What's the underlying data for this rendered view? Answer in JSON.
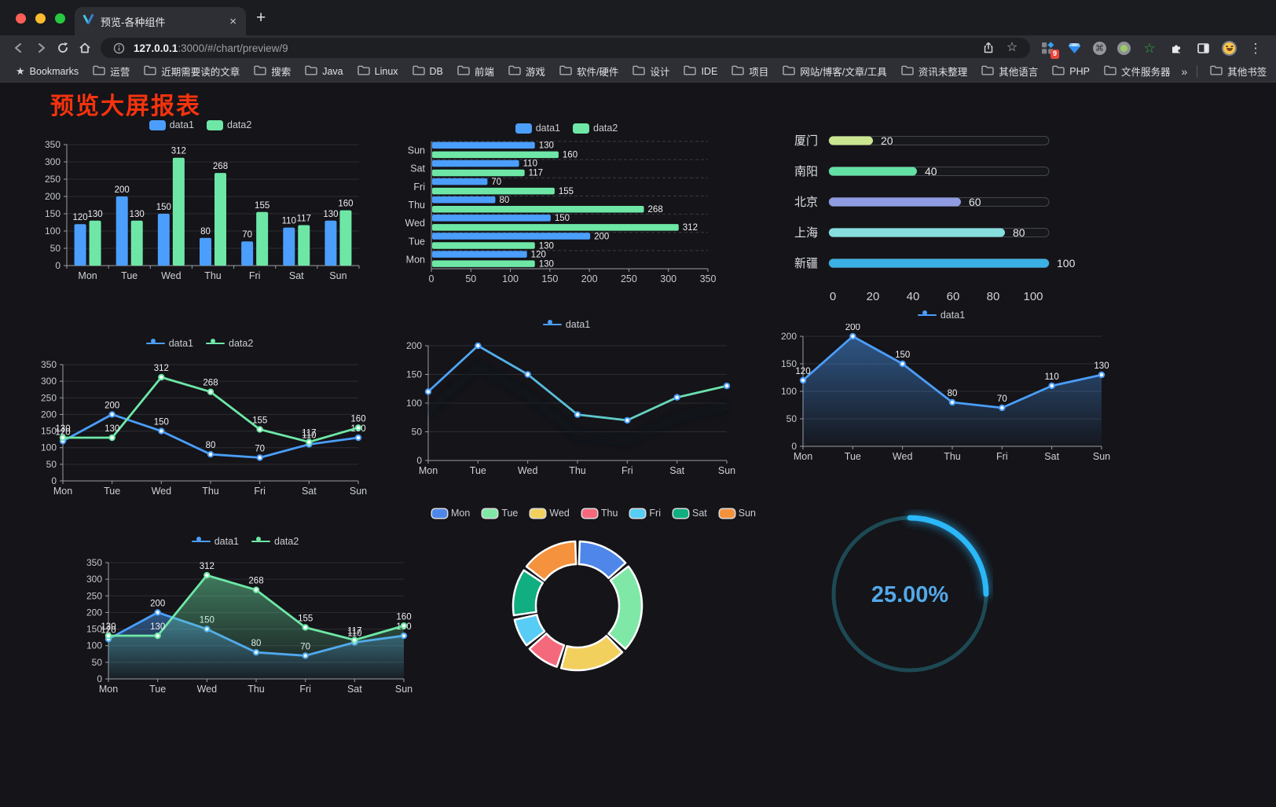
{
  "browser": {
    "tab": {
      "title": "预览-各种组件"
    },
    "glyphs": {
      "tab_close": "×",
      "new_tab": "+",
      "bookmarks_star": "★",
      "address_star": "☆",
      "green_star": "☆",
      "command": "⌘",
      "menu_dots": "⋮",
      "overflow": "»"
    },
    "url": {
      "host": "127.0.0.1",
      "rest": ":3000/#/chart/preview/9"
    },
    "extension_badge": "9",
    "bookmarks_bar": {
      "bookmarks_label": "Bookmarks",
      "folders": [
        "运营",
        "近期需要读的文章",
        "搜索",
        "Java",
        "Linux",
        "DB",
        "前端",
        "游戏",
        "软件/硬件",
        "设计",
        "IDE",
        "项目",
        "网站/博客/文章/工具",
        "资讯未整理",
        "其他语言",
        "PHP",
        "文件服务器"
      ],
      "other_bookmarks_label": "其他书签"
    }
  },
  "page": {
    "title": "预览大屏报表",
    "title_color": "#f6330e",
    "background": "#141419"
  },
  "chart_data": [
    {
      "id": "grouped-bar-vertical",
      "type": "bar",
      "title": "",
      "categories": [
        "Mon",
        "Tue",
        "Wed",
        "Thu",
        "Fri",
        "Sat",
        "Sun"
      ],
      "series": [
        {
          "name": "data1",
          "color": "#4b9efb",
          "values": [
            120,
            200,
            150,
            80,
            70,
            110,
            130
          ]
        },
        {
          "name": "data2",
          "color": "#6ee7a6",
          "values": [
            130,
            130,
            312,
            268,
            155,
            117,
            160
          ]
        }
      ],
      "ylim": [
        0,
        350
      ],
      "ystep": 50,
      "legend_position": "top",
      "grid": true,
      "value_labels": true
    },
    {
      "id": "grouped-bar-horizontal",
      "type": "bar-horizontal",
      "categories": [
        "Mon",
        "Tue",
        "Wed",
        "Thu",
        "Fri",
        "Sat",
        "Sun"
      ],
      "series": [
        {
          "name": "data1",
          "color": "#4b9efb",
          "values": [
            120,
            200,
            150,
            80,
            70,
            110,
            130
          ]
        },
        {
          "name": "data2",
          "color": "#6ee7a6",
          "values": [
            130,
            130,
            312,
            268,
            155,
            117,
            160
          ]
        }
      ],
      "xlim": [
        0,
        350
      ],
      "xstep": 50,
      "legend_position": "top",
      "grid": true,
      "value_labels": true
    },
    {
      "id": "city-progress",
      "type": "progress-bars",
      "categories": [
        "厦门",
        "南阳",
        "北京",
        "上海",
        "新疆"
      ],
      "values": [
        20,
        40,
        60,
        80,
        100
      ],
      "colors": [
        "#cbe690",
        "#63e0a4",
        "#8f9ce2",
        "#86dede",
        "#3bb0e5"
      ],
      "xlim": [
        0,
        100
      ],
      "xticks": [
        0,
        20,
        40,
        60,
        80,
        100
      ],
      "value_labels": true
    },
    {
      "id": "line-two-series",
      "type": "line",
      "categories": [
        "Mon",
        "Tue",
        "Wed",
        "Thu",
        "Fri",
        "Sat",
        "Sun"
      ],
      "series": [
        {
          "name": "data1",
          "color": "#4b9efb",
          "values": [
            120,
            200,
            150,
            80,
            70,
            110,
            130
          ]
        },
        {
          "name": "data2",
          "color": "#6ee7a6",
          "values": [
            130,
            130,
            312,
            268,
            155,
            117,
            160
          ]
        }
      ],
      "ylim": [
        0,
        350
      ],
      "ystep": 50,
      "legend_position": "top",
      "value_labels": true
    },
    {
      "id": "line-gradient",
      "type": "line",
      "categories": [
        "Mon",
        "Tue",
        "Wed",
        "Thu",
        "Fri",
        "Sat",
        "Sun"
      ],
      "series": [
        {
          "name": "data1",
          "color": "#4b9efb",
          "color2": "#6ee7a6",
          "values": [
            120,
            200,
            150,
            80,
            70,
            110,
            130
          ]
        }
      ],
      "ylim": [
        0,
        200
      ],
      "ystep": 50,
      "legend_position": "top",
      "value_labels": false,
      "shadow": true
    },
    {
      "id": "area-single",
      "type": "area",
      "categories": [
        "Mon",
        "Tue",
        "Wed",
        "Thu",
        "Fri",
        "Sat",
        "Sun"
      ],
      "series": [
        {
          "name": "data1",
          "color": "#4b9efb",
          "values": [
            120,
            200,
            150,
            80,
            70,
            110,
            130
          ]
        }
      ],
      "ylim": [
        0,
        200
      ],
      "ystep": 50,
      "legend_position": "top",
      "value_labels": true
    },
    {
      "id": "area-two-series",
      "type": "area",
      "categories": [
        "Mon",
        "Tue",
        "Wed",
        "Thu",
        "Fri",
        "Sat",
        "Sun"
      ],
      "series": [
        {
          "name": "data1",
          "color": "#4b9efb",
          "values": [
            120,
            200,
            150,
            80,
            70,
            110,
            130
          ]
        },
        {
          "name": "data2",
          "color": "#6ee7a6",
          "values": [
            130,
            130,
            312,
            268,
            155,
            117,
            160
          ]
        }
      ],
      "ylim": [
        0,
        350
      ],
      "ystep": 50,
      "legend_position": "top",
      "value_labels": true
    },
    {
      "id": "weekday-donut",
      "type": "pie",
      "categories": [
        "Mon",
        "Tue",
        "Wed",
        "Thu",
        "Fri",
        "Sat",
        "Sun"
      ],
      "values": [
        120,
        200,
        150,
        80,
        70,
        110,
        130
      ],
      "colors": [
        "#4e86ea",
        "#7fe8a6",
        "#f2d05e",
        "#f5697d",
        "#57ccf5",
        "#10ae80",
        "#f5923e"
      ],
      "legend_position": "top",
      "donut": true
    },
    {
      "id": "percent-gauge",
      "type": "gauge",
      "value": 25,
      "label": "25.00%",
      "color": "#2bb7f8",
      "track_color": "#1d4953",
      "text_color": "#54a8e8"
    }
  ]
}
